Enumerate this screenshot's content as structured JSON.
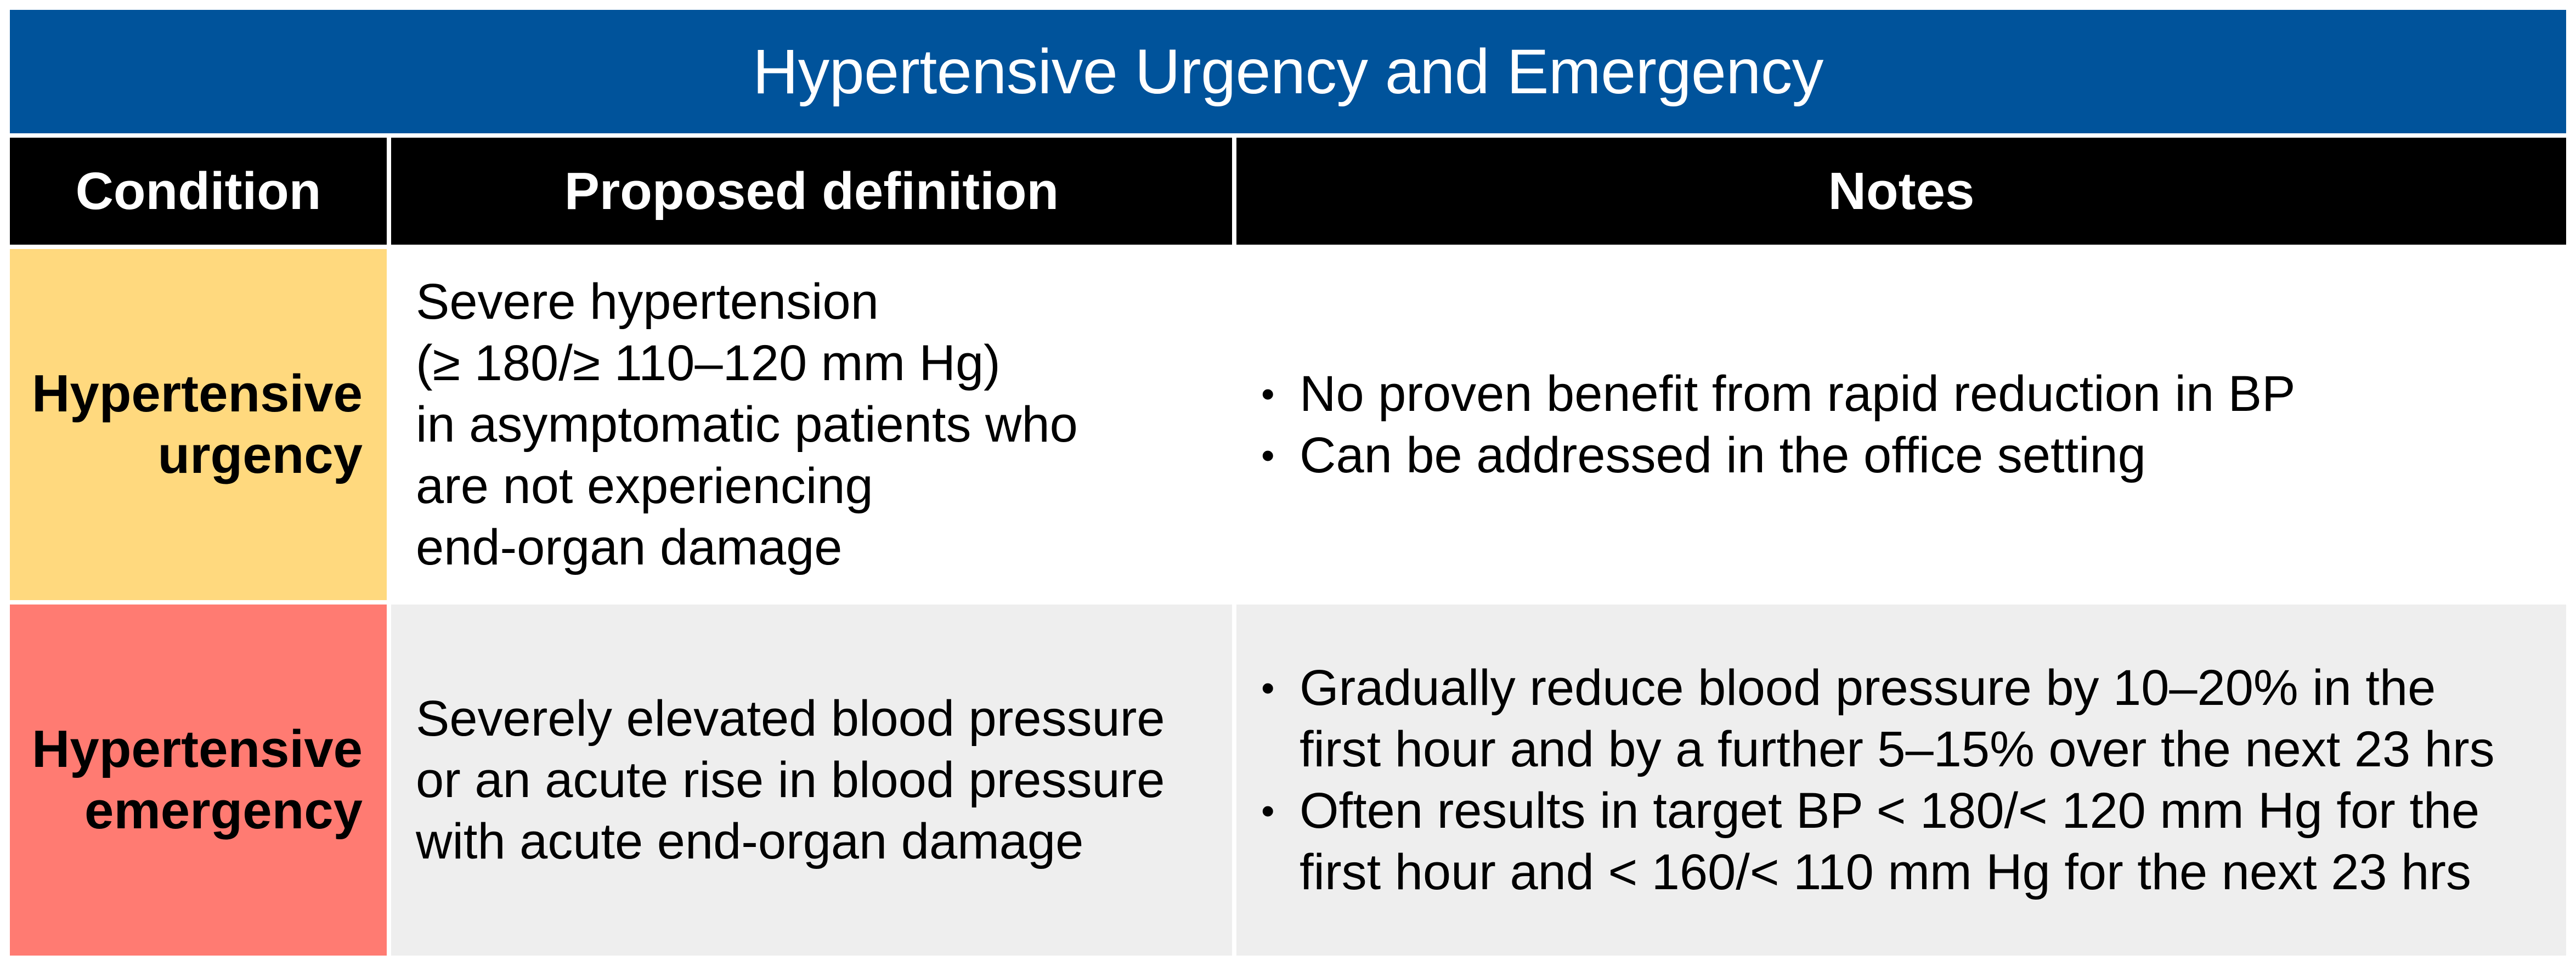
{
  "title": "Hypertensive Urgency and Emergency",
  "colors": {
    "title_bg": "#00539B",
    "header_bg": "#000000",
    "urgency_bg": "#FFD97E",
    "emergency_bg": "#FF7B72",
    "row1_bg": "#FFFFFF",
    "row2_bg": "#EEEEEE"
  },
  "headers": {
    "condition": "Condition",
    "definition": "Proposed definition",
    "notes": "Notes"
  },
  "rows": [
    {
      "condition": [
        "Hypertensive",
        "urgency"
      ],
      "definition": [
        "Severe hypertension",
        "(≥ 180/≥ 110–120 mm Hg)",
        "in asymptomatic patients who",
        "are not experiencing",
        "end-organ damage"
      ],
      "notes": [
        [
          "No proven benefit from rapid reduction in BP"
        ],
        [
          "Can be addressed in the office setting"
        ]
      ]
    },
    {
      "condition": [
        "Hypertensive",
        "emergency"
      ],
      "definition": [
        "Severely elevated blood pressure",
        "or an acute rise in blood pressure",
        "with acute end-organ damage"
      ],
      "notes": [
        [
          "Gradually reduce blood pressure by 10–20% in the",
          "first hour and by a further 5–15% over the next 23 hrs"
        ],
        [
          "Often results in target BP < 180/< 120 mm Hg for the",
          "first hour and < 160/< 110 mm Hg for the next 23 hrs"
        ]
      ]
    }
  ],
  "bullet_glyph": "•"
}
